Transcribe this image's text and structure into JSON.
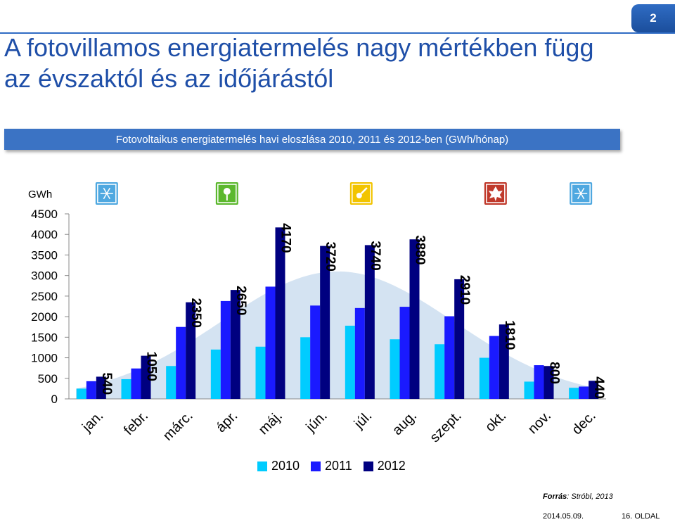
{
  "page_number": "2",
  "title": "A fotovillamos energiatermelés nagy mértékben függ az évszaktól és az időjárástól",
  "subtitle": "Fotovoltaikus energiatermelés havi eloszlása 2010, 2011 és 2012-ben (GWh/hónap)",
  "source_label": "Forrás",
  "source_text": ": Stróbl, 2013",
  "date": "2014.05.09.",
  "page_footer": "16. OLDAL",
  "colors": {
    "2010": "#00ccff",
    "2011": "#1a1aff",
    "2012": "#000080",
    "band": "#c6d9ee",
    "accent": "#1f4fa8"
  },
  "chart_data": {
    "type": "bar",
    "ylabel": "GWh",
    "ylim": [
      0,
      4500
    ],
    "yticks": [
      0,
      500,
      1000,
      1500,
      2000,
      2500,
      3000,
      3500,
      4000,
      4500
    ],
    "categories": [
      "jan.",
      "febr.",
      "márc.",
      "ápr.",
      "máj.",
      "jún.",
      "júl.",
      "aug.",
      "szept.",
      "okt.",
      "nov.",
      "dec."
    ],
    "series": [
      {
        "name": "2010",
        "values": [
          250,
          480,
          800,
          1200,
          1270,
          1500,
          1780,
          1450,
          1330,
          1000,
          420,
          270
        ]
      },
      {
        "name": "2011",
        "values": [
          430,
          740,
          1750,
          2380,
          2730,
          2270,
          2210,
          2240,
          2010,
          1530,
          820,
          300
        ]
      },
      {
        "name": "2012",
        "values": [
          540,
          1050,
          2350,
          2650,
          4170,
          3720,
          3740,
          3880,
          2910,
          1810,
          800,
          440
        ]
      }
    ],
    "data_labels": [
      "540",
      "1050",
      "2350",
      "2650",
      "4170",
      "3720",
      "3740",
      "3880",
      "2910",
      "1810",
      "800",
      "440"
    ],
    "season_icons": [
      {
        "month": "jan.",
        "icon": "snowflake-icon",
        "color": "#4fa8e0"
      },
      {
        "month": "ápr.",
        "icon": "flower-icon",
        "color": "#5cb82e"
      },
      {
        "month": "júl.",
        "icon": "sun-icon",
        "color": "#f2c400"
      },
      {
        "month": "okt.",
        "icon": "leaf-icon",
        "color": "#c0392b"
      },
      {
        "month": "dec.",
        "icon": "snowflake-icon",
        "color": "#4fa8e0"
      }
    ],
    "background_band": "season-curve",
    "legend_position": "bottom"
  }
}
